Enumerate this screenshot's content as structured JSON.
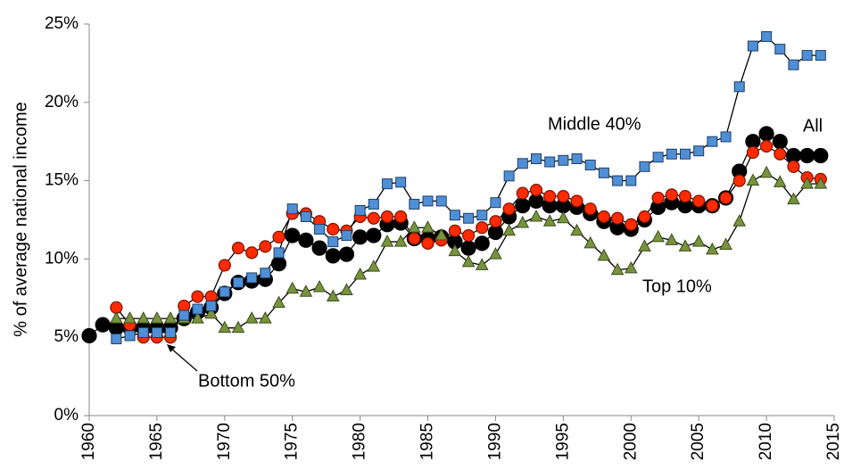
{
  "chart_data": {
    "type": "line",
    "y_label": "% of average national income",
    "x": [
      1960,
      1961,
      1962,
      1963,
      1964,
      1965,
      1966,
      1967,
      1968,
      1969,
      1970,
      1971,
      1972,
      1973,
      1974,
      1975,
      1976,
      1977,
      1978,
      1979,
      1980,
      1981,
      1982,
      1983,
      1984,
      1985,
      1986,
      1987,
      1988,
      1989,
      1990,
      1991,
      1992,
      1993,
      1994,
      1995,
      1996,
      1997,
      1998,
      1999,
      2000,
      2001,
      2002,
      2003,
      2004,
      2005,
      2006,
      2007,
      2008,
      2009,
      2010,
      2011,
      2012,
      2013,
      2014
    ],
    "xlim": [
      1960,
      2015
    ],
    "xticks": [
      1960,
      1965,
      1970,
      1975,
      1980,
      1985,
      1990,
      1995,
      2000,
      2005,
      2010,
      2015
    ],
    "ylim": [
      0,
      25
    ],
    "yticks": [
      {
        "value": 0,
        "label": "0%"
      },
      {
        "value": 5,
        "label": "5%"
      },
      {
        "value": 10,
        "label": "10%"
      },
      {
        "value": 15,
        "label": "15%"
      },
      {
        "value": 20,
        "label": "20%"
      },
      {
        "value": 25,
        "label": "25%"
      }
    ],
    "series": [
      {
        "name": "All",
        "color": "#000000",
        "marker": "circle",
        "values": [
          5.1,
          5.8,
          5.6,
          5.6,
          5.6,
          5.6,
          5.6,
          6.2,
          6.6,
          6.9,
          7.8,
          8.5,
          8.6,
          8.7,
          9.7,
          11.5,
          11.2,
          10.7,
          10.2,
          10.3,
          11.4,
          11.5,
          12.2,
          12.3,
          11.3,
          11.3,
          11.4,
          11.1,
          10.7,
          11.0,
          11.7,
          12.7,
          13.4,
          13.7,
          13.4,
          13.4,
          13.3,
          12.9,
          12.4,
          12.0,
          11.9,
          12.5,
          13.3,
          13.6,
          13.4,
          13.4,
          13.4,
          13.9,
          15.6,
          17.5,
          18.0,
          17.5,
          16.6,
          16.6,
          16.6
        ]
      },
      {
        "name": "Bottom 50%",
        "color": "#ff2a00",
        "marker": "circle",
        "values": [
          null,
          null,
          6.9,
          5.8,
          5.0,
          5.0,
          5.0,
          7.0,
          7.6,
          7.6,
          9.6,
          10.7,
          10.4,
          10.8,
          11.4,
          12.9,
          12.9,
          12.4,
          11.9,
          11.8,
          12.7,
          12.6,
          12.7,
          12.7,
          11.3,
          11.0,
          11.2,
          11.8,
          11.5,
          12.0,
          12.4,
          13.2,
          14.2,
          14.4,
          14.0,
          14.0,
          13.7,
          13.2,
          12.7,
          12.6,
          12.2,
          12.7,
          13.9,
          14.1,
          14.0,
          13.7,
          13.4,
          13.9,
          15.0,
          16.8,
          17.2,
          16.7,
          15.9,
          15.2,
          15.1
        ]
      },
      {
        "name": "Top 10%",
        "color": "#77933c",
        "marker": "triangle",
        "values": [
          null,
          null,
          6.2,
          6.2,
          6.2,
          6.2,
          6.2,
          6.2,
          6.2,
          6.5,
          5.6,
          5.6,
          6.2,
          6.2,
          7.2,
          8.1,
          7.9,
          8.2,
          7.6,
          8.0,
          9.0,
          9.5,
          11.1,
          11.1,
          12.0,
          12.0,
          11.5,
          10.5,
          9.8,
          9.6,
          10.3,
          11.8,
          12.3,
          12.7,
          12.4,
          12.6,
          11.8,
          11.0,
          10.2,
          9.3,
          9.4,
          10.8,
          11.4,
          11.2,
          10.8,
          11.1,
          10.6,
          10.9,
          12.4,
          15.0,
          15.5,
          14.9,
          13.8,
          14.8,
          14.8
        ]
      },
      {
        "name": "Middle 40%",
        "color": "#4f8fd6",
        "marker": "square",
        "values": [
          null,
          null,
          4.9,
          5.1,
          5.3,
          5.3,
          5.3,
          6.4,
          6.8,
          7.0,
          7.9,
          8.5,
          8.8,
          9.1,
          10.4,
          13.2,
          12.7,
          11.9,
          11.1,
          11.5,
          13.1,
          13.5,
          14.8,
          14.9,
          13.5,
          13.7,
          13.7,
          12.8,
          12.6,
          12.8,
          13.6,
          15.3,
          16.1,
          16.4,
          16.2,
          16.3,
          16.4,
          16.0,
          15.5,
          15.0,
          15.0,
          15.9,
          16.5,
          16.7,
          16.7,
          16.9,
          17.5,
          17.8,
          21.0,
          23.6,
          24.2,
          23.4,
          22.4,
          23.0,
          23.0
        ]
      }
    ]
  }
}
